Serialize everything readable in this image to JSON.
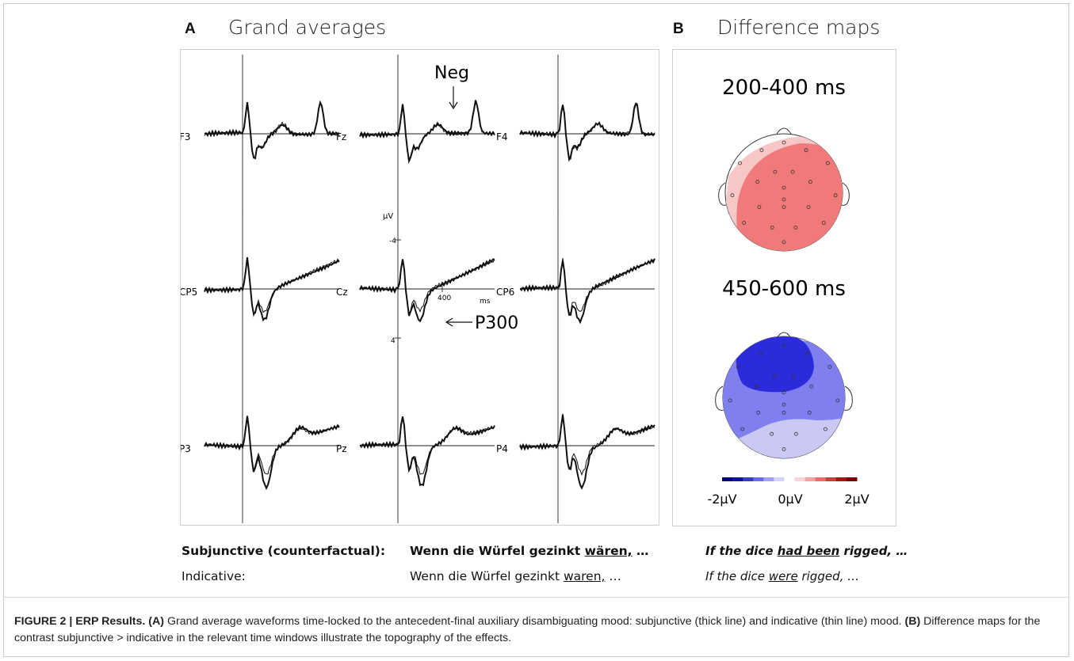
{
  "panelA": {
    "letter": "A",
    "title": "Grand averages",
    "electrodes": [
      "F3",
      "Fz",
      "F4",
      "CP5",
      "Cz",
      "CP6",
      "P3",
      "Pz",
      "P4"
    ],
    "axis_unit": "µV",
    "tick_neg": "-4",
    "tick_pos": "4",
    "time_tick": "400",
    "time_unit": "ms",
    "annotation_neg": "Neg",
    "annotation_p300": "P300"
  },
  "panelB": {
    "letter": "B",
    "title": "Difference maps",
    "window1": "200-400 ms",
    "window2": "450-600 ms",
    "scale_min": "-2µV",
    "scale_mid": "0µV",
    "scale_max": "2µV",
    "colors": {
      "positive": "#f07878",
      "negative": "#3a3ae8"
    }
  },
  "examples": {
    "subjunctive_label": "Subjunctive (counterfactual):",
    "subjunctive_german_pre": "Wenn die Würfel gezinkt ",
    "subjunctive_german_verb": "wären,",
    "subjunctive_german_post": " …",
    "subjunctive_english_pre": "If the dice ",
    "subjunctive_english_verb": "had been",
    "subjunctive_english_post": " rigged, …",
    "indicative_label": "Indicative:",
    "indicative_german_pre": "Wenn die Würfel gezinkt ",
    "indicative_german_verb": "waren,",
    "indicative_german_post": " …",
    "indicative_english_pre": "If the dice ",
    "indicative_english_verb": "were",
    "indicative_english_post": " rigged, …"
  },
  "caption": {
    "figure_label": "FIGURE 2 | ERP Results.",
    "a_label": "(A)",
    "a_text": " Grand average waveforms time-locked to the antecedent-final auxiliary disambiguating mood: subjunctive (thick line) and indicative (thin line) mood. ",
    "b_label": "(B)",
    "b_text": " Difference maps for the contrast subjunctive > indicative in the relevant time windows illustrate the topography of the effects."
  }
}
